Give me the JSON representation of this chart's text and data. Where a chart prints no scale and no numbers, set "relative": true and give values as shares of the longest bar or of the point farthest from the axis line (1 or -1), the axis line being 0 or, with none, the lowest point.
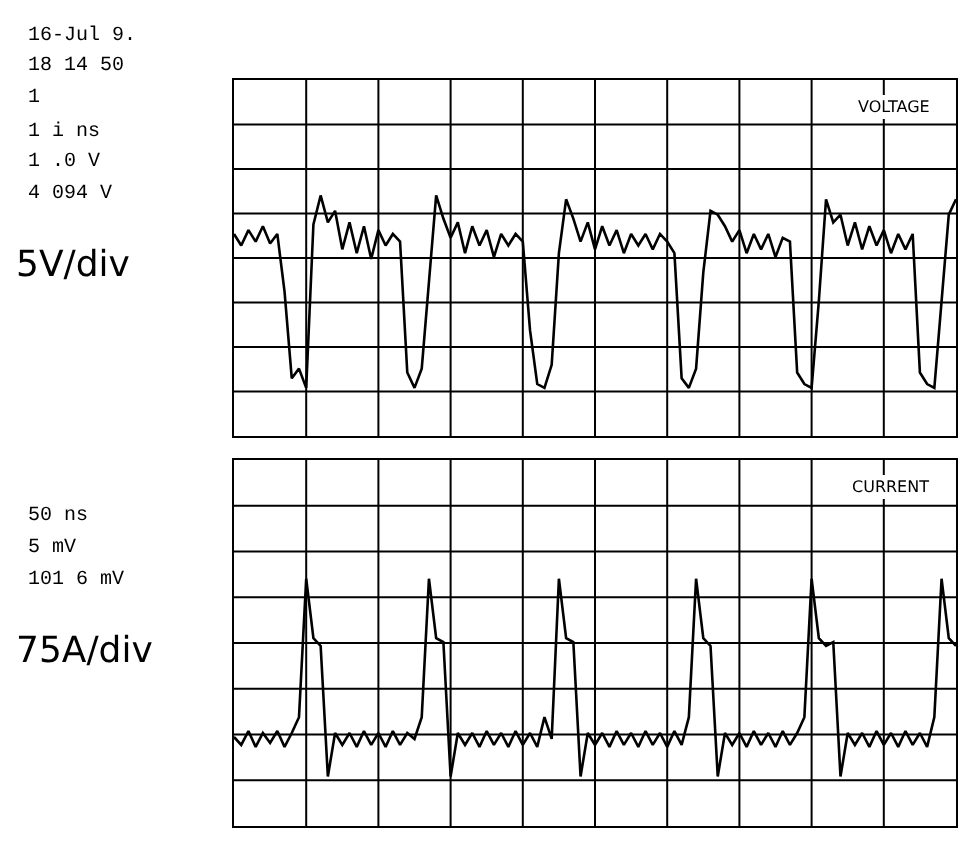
{
  "chart_data": [
    {
      "type": "line",
      "title": "VOLTAGE",
      "ylabel": "5V/div",
      "relative": true,
      "grid": true,
      "tick_labels": false,
      "line_style": "solid",
      "annotations": [
        "16-Jul 9.",
        "18 14 50",
        "1",
        "1 i ns",
        "1 .0 V",
        "4 094 V"
      ],
      "categories": [
        null,
        null,
        null,
        null,
        null,
        null,
        null,
        null,
        null,
        null,
        null,
        null,
        null,
        null,
        null,
        null,
        null,
        null,
        null,
        null,
        null,
        null,
        null,
        null,
        null,
        null,
        null,
        null,
        null,
        null,
        null,
        null,
        null,
        null,
        null,
        null,
        null,
        null,
        null,
        null,
        null,
        null,
        null,
        null,
        null,
        null,
        null,
        null,
        null,
        null,
        null,
        null,
        null,
        null,
        null,
        null,
        null,
        null,
        null,
        null,
        null,
        null,
        null,
        null,
        null,
        null,
        null,
        null,
        null,
        null,
        null,
        null,
        null,
        null,
        null,
        null,
        null,
        null,
        null,
        null,
        null,
        null,
        null,
        null,
        null,
        null,
        null,
        null,
        null,
        null,
        null,
        null,
        null,
        null,
        null,
        null,
        null,
        null,
        null,
        null,
        null
      ],
      "series": [
        {
          "color": "#000000",
          "values": [
            0.8,
            0.74,
            0.82,
            0.76,
            0.84,
            0.75,
            0.8,
            0.5,
            0.05,
            0.1,
            0.0,
            0.85,
            1.0,
            0.86,
            0.92,
            0.72,
            0.86,
            0.7,
            0.84,
            0.67,
            0.82,
            0.74,
            0.8,
            0.76,
            0.08,
            0.0,
            0.1,
            0.55,
            1.0,
            0.88,
            0.78,
            0.86,
            0.7,
            0.84,
            0.74,
            0.82,
            0.68,
            0.8,
            0.74,
            0.8,
            0.76,
            0.3,
            0.02,
            0.0,
            0.12,
            0.7,
            0.98,
            0.88,
            0.76,
            0.86,
            0.72,
            0.84,
            0.74,
            0.82,
            0.7,
            0.8,
            0.74,
            0.8,
            0.72,
            0.8,
            0.76,
            0.7,
            0.05,
            0.0,
            0.1,
            0.6,
            0.92,
            0.9,
            0.84,
            0.76,
            0.82,
            0.7,
            0.8,
            0.72,
            0.8,
            0.68,
            0.78,
            0.76,
            0.08,
            0.02,
            0.0,
            0.45,
            0.98,
            0.86,
            0.9,
            0.74,
            0.86,
            0.72,
            0.84,
            0.74,
            0.82,
            0.7,
            0.8,
            0.72,
            0.8,
            0.08,
            0.02,
            0.0,
            0.45,
            0.9,
            0.98
          ]
        }
      ]
    },
    {
      "type": "line",
      "title": "CURRENT",
      "ylabel": "75A/div",
      "relative": true,
      "grid": true,
      "tick_labels": false,
      "line_style": "solid",
      "annotations": [
        "50 ns",
        "5 mV",
        "101 6 mV"
      ],
      "categories": [
        null,
        null,
        null,
        null,
        null,
        null,
        null,
        null,
        null,
        null,
        null,
        null,
        null,
        null,
        null,
        null,
        null,
        null,
        null,
        null,
        null,
        null,
        null,
        null,
        null,
        null,
        null,
        null,
        null,
        null,
        null,
        null,
        null,
        null,
        null,
        null,
        null,
        null,
        null,
        null,
        null,
        null,
        null,
        null,
        null,
        null,
        null,
        null,
        null,
        null,
        null,
        null,
        null,
        null,
        null,
        null,
        null,
        null,
        null,
        null,
        null,
        null,
        null,
        null,
        null,
        null,
        null,
        null,
        null,
        null,
        null,
        null,
        null,
        null,
        null,
        null,
        null,
        null,
        null,
        null,
        null,
        null,
        null,
        null,
        null,
        null,
        null,
        null,
        null,
        null,
        null,
        null,
        null,
        null,
        null,
        null,
        null,
        null,
        null,
        null,
        null
      ],
      "series": [
        {
          "color": "#000000",
          "values": [
            0.2,
            0.16,
            0.23,
            0.15,
            0.22,
            0.17,
            0.23,
            0.15,
            0.22,
            0.3,
            1.0,
            0.7,
            0.66,
            0.0,
            0.22,
            0.16,
            0.22,
            0.15,
            0.23,
            0.16,
            0.22,
            0.15,
            0.23,
            0.16,
            0.22,
            0.19,
            0.3,
            1.0,
            0.7,
            0.68,
            0.0,
            0.22,
            0.16,
            0.22,
            0.15,
            0.23,
            0.16,
            0.22,
            0.15,
            0.23,
            0.16,
            0.22,
            0.15,
            0.3,
            0.19,
            1.0,
            0.7,
            0.68,
            0.0,
            0.22,
            0.16,
            0.22,
            0.15,
            0.23,
            0.16,
            0.22,
            0.15,
            0.23,
            0.16,
            0.22,
            0.15,
            0.23,
            0.16,
            0.3,
            1.0,
            0.7,
            0.66,
            0.0,
            0.22,
            0.16,
            0.22,
            0.15,
            0.23,
            0.16,
            0.22,
            0.15,
            0.23,
            0.16,
            0.22,
            0.3,
            1.0,
            0.7,
            0.66,
            0.68,
            0.0,
            0.22,
            0.16,
            0.22,
            0.15,
            0.23,
            0.16,
            0.22,
            0.15,
            0.23,
            0.16,
            0.22,
            0.15,
            0.3,
            1.0,
            0.7,
            0.66
          ]
        }
      ]
    }
  ]
}
